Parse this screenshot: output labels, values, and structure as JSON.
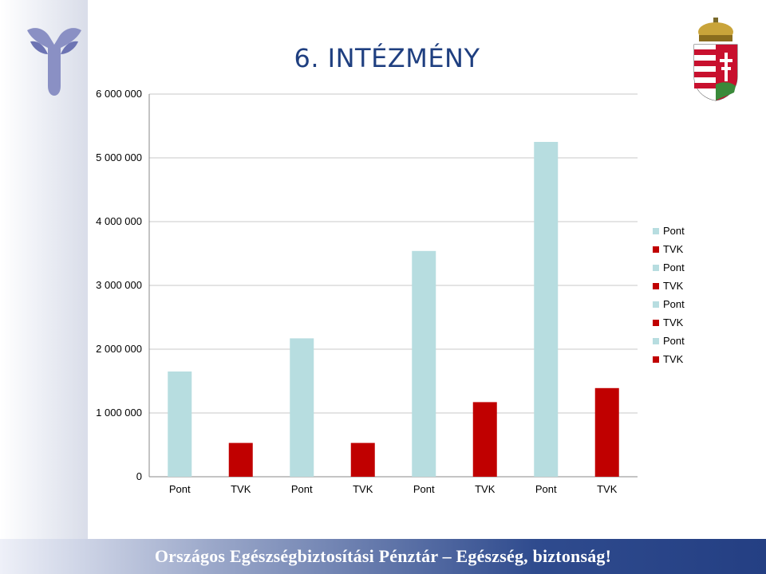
{
  "header": {
    "title": "6. INTÉZMÉNY"
  },
  "chart_data": {
    "type": "bar",
    "title": "",
    "xlabel": "",
    "ylabel": "",
    "categories": [
      "Pont",
      "TVK",
      "Pont",
      "TVK",
      "Pont",
      "TVK",
      "Pont",
      "TVK"
    ],
    "values": [
      1650000,
      530000,
      2170000,
      530000,
      3540000,
      1170000,
      5250000,
      1390000
    ],
    "bar_colors": [
      "#b7dde0",
      "#c00000",
      "#b7dde0",
      "#c00000",
      "#b7dde0",
      "#c00000",
      "#b7dde0",
      "#c00000"
    ],
    "ylim": [
      0,
      6000000
    ],
    "y_ticks": [
      {
        "value": 0,
        "label": "0"
      },
      {
        "value": 1000000,
        "label": "1 000 000"
      },
      {
        "value": 2000000,
        "label": "2 000 000"
      },
      {
        "value": 3000000,
        "label": "3 000 000"
      },
      {
        "value": 4000000,
        "label": "4 000 000"
      },
      {
        "value": 5000000,
        "label": "5 000 000"
      },
      {
        "value": 6000000,
        "label": "6 000 000"
      }
    ],
    "grid": true,
    "legend_position": "right",
    "legend": [
      {
        "label": "Pont",
        "color": "#b7dde0"
      },
      {
        "label": "TVK",
        "color": "#c00000"
      },
      {
        "label": "Pont",
        "color": "#b7dde0"
      },
      {
        "label": "TVK",
        "color": "#c00000"
      },
      {
        "label": "Pont",
        "color": "#b7dde0"
      },
      {
        "label": "TVK",
        "color": "#c00000"
      },
      {
        "label": "Pont",
        "color": "#b7dde0"
      },
      {
        "label": "TVK",
        "color": "#c00000"
      }
    ]
  },
  "footer": {
    "text": "Országos Egészségbiztosítási Pénztár – Egészség, biztonság!"
  },
  "icons": {
    "left_logo": "oep-logo-icon",
    "right_logo": "hungarian-coat-of-arms-icon"
  }
}
